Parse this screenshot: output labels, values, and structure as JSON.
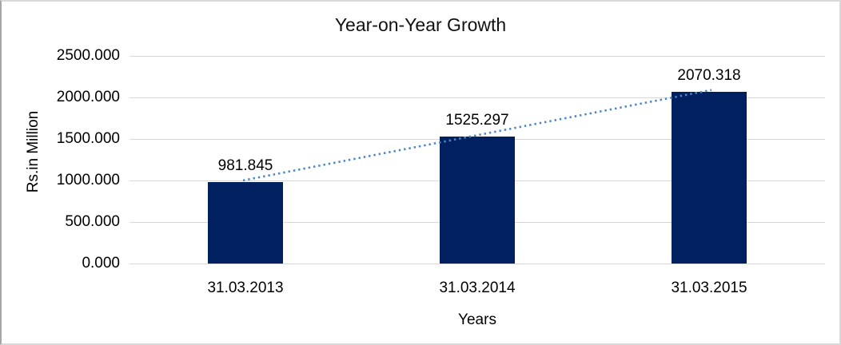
{
  "chart": {
    "title": "Year-on-Year Growth",
    "colors": {
      "bar_fill": "#002060",
      "trendline": "#4a86c8",
      "gridline": "#d9d9d9",
      "text": "#000000",
      "frame": "#d9d9d9"
    }
  },
  "chart_data": {
    "type": "bar",
    "title": "Year-on-Year Growth",
    "categories": [
      "31.03.2013",
      "31.03.2014",
      "31.03.2015"
    ],
    "values": [
      981.845,
      1525.297,
      2070.318
    ],
    "data_labels": [
      "981.845",
      "1525.297",
      "2070.318"
    ],
    "xlabel": "Years",
    "ylabel": "Rs.in Million",
    "ylim": [
      0,
      2500
    ],
    "y_ticks_top_to_bottom": [
      "2500.000",
      "2000.000",
      "1500.000",
      "1000.000",
      "500.000",
      "0.000"
    ],
    "grid": "horizontal",
    "legend": "none",
    "trendline": {
      "style": "dotted",
      "from_category": "31.03.2013",
      "to_category": "31.03.2015"
    }
  }
}
